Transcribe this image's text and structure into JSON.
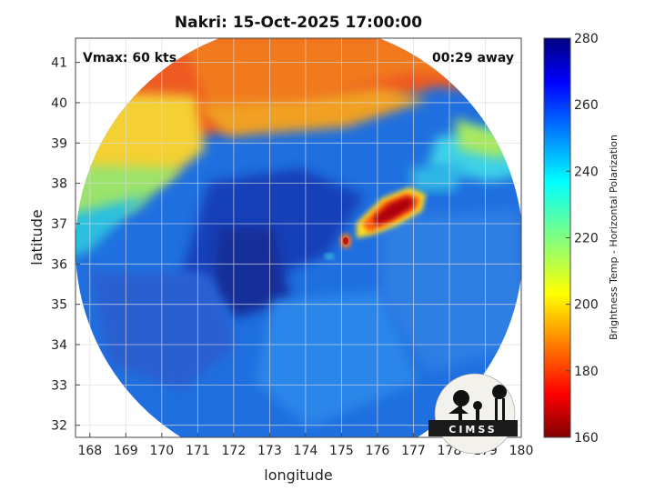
{
  "title": "Nakri: 15-Oct-2025 17:00:00",
  "annotations": {
    "vmax": "Vmax: 60 kts",
    "time_away": "00:29 away"
  },
  "axes": {
    "xlabel": "longitude",
    "ylabel": "latitude",
    "xlim": [
      167.6,
      180
    ],
    "ylim": [
      31.7,
      41.6
    ],
    "xticks": [
      "168",
      "169",
      "170",
      "171",
      "172",
      "173",
      "174",
      "175",
      "176",
      "177",
      "178",
      "179",
      "180"
    ],
    "yticks": [
      "32",
      "33",
      "34",
      "35",
      "36",
      "37",
      "38",
      "39",
      "40",
      "41"
    ],
    "grid": true
  },
  "colorbar": {
    "label": "Brightness Temp - Horizontal Polarization",
    "ticks": [
      "160",
      "180",
      "200",
      "220",
      "240",
      "260",
      "280"
    ],
    "range": [
      160,
      280
    ],
    "colormap": "jet"
  },
  "logo": {
    "text": "CIMSS"
  },
  "colors": {
    "background_swath": "#1f6fe0",
    "warm_region": "#ee5a22",
    "cold_core": "#8a0010"
  }
}
